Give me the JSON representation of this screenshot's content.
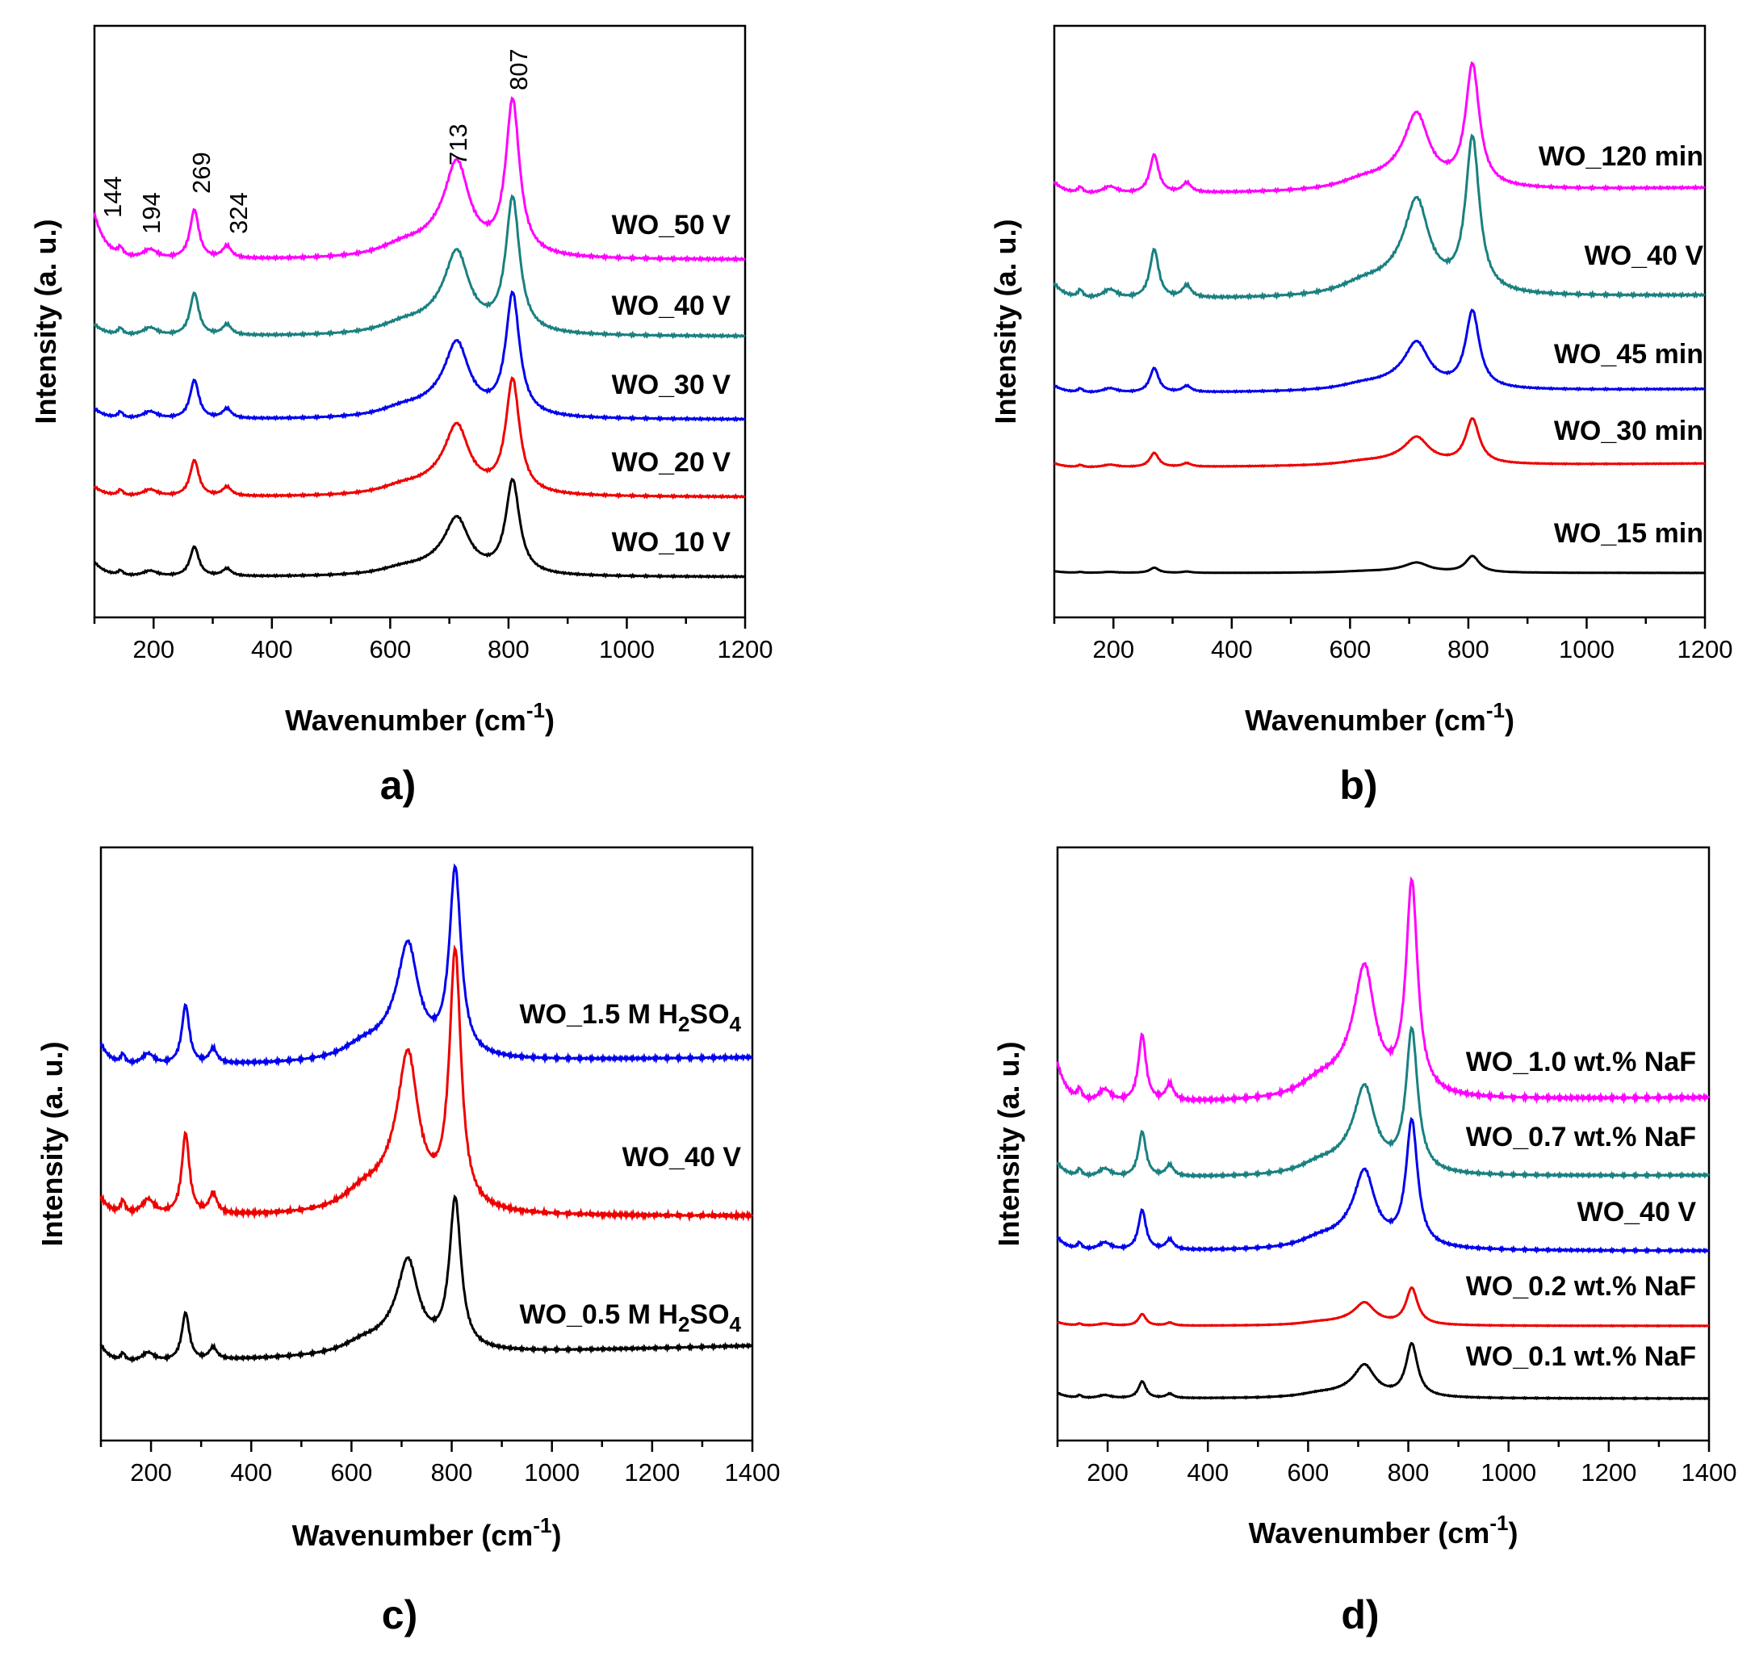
{
  "chart_data": [
    {
      "panel": "a)",
      "type": "line",
      "xlabel": "Wavenumber (cm",
      "xlabel_sup": "-1",
      "xlabel_end": ")",
      "ylabel": "Intensity (a. u.)",
      "xlim": [
        100,
        1200
      ],
      "xticks": [
        200,
        400,
        600,
        800,
        1000,
        1200
      ],
      "peak_labels": [
        "144",
        "194",
        "269",
        "324",
        "713",
        "807"
      ],
      "series": [
        {
          "name": "WO_50 V",
          "color": "#ff00ff",
          "scale": 1.0,
          "baseline": 0.85,
          "end": 0.0
        },
        {
          "name": "WO_40 V",
          "color": "#1a8080",
          "scale": 1.0,
          "baseline": 0.25,
          "end": 0.0
        },
        {
          "name": "WO_30 V",
          "color": "#0000ee",
          "scale": 0.85,
          "baseline": 0.25,
          "end": 0.0
        },
        {
          "name": "WO_20 V",
          "color": "#ee0000",
          "scale": 0.85,
          "baseline": 0.25,
          "end": 0.0
        },
        {
          "name": "WO_10 V",
          "color": "#000000",
          "scale": 0.65,
          "baseline": 0.45,
          "end": 0.0
        }
      ]
    },
    {
      "panel": "b)",
      "type": "line",
      "xlabel": "Wavenumber (cm",
      "xlabel_sup": "-1",
      "xlabel_end": ")",
      "ylabel": "Intensity (a. u.)",
      "xlim": [
        100,
        1200
      ],
      "xticks": [
        200,
        400,
        600,
        800,
        1000,
        1200
      ],
      "series": [
        {
          "name": "WO_120 min",
          "color": "#ff00ff",
          "scale": 0.85,
          "baseline": 0.3,
          "end": 0.06
        },
        {
          "name": "WO_40 V",
          "color": "#1a8080",
          "scale": 1.0,
          "baseline": 0.3,
          "end": 0.03
        },
        {
          "name": "WO_45 min",
          "color": "#0000ee",
          "scale": 0.55,
          "baseline": 0.3,
          "end": 0.06
        },
        {
          "name": "WO_30 min",
          "color": "#ee0000",
          "scale": 0.3,
          "baseline": 0.3,
          "end": 0.1
        },
        {
          "name": "WO_15 min",
          "color": "#000000",
          "scale": 0.1,
          "baseline": 0.3,
          "end": 0.0
        }
      ]
    },
    {
      "panel": "c)",
      "type": "line",
      "xlabel": "Wavenumber (cm",
      "xlabel_sup": "-1",
      "xlabel_end": ")",
      "ylabel": "Intensity (a. u.)",
      "xlim": [
        100,
        1400
      ],
      "xticks": [
        200,
        400,
        600,
        800,
        1000,
        1200,
        1400
      ],
      "series": [
        {
          "name": "WO_1.5 M H",
          "sub1": "2",
          "mid": "SO",
          "sub2": "4",
          "color": "#0000ee",
          "scale": 0.95,
          "baseline": 0.35,
          "end": 0.05
        },
        {
          "name": "WO_40 V",
          "color": "#ee0000",
          "scale": 1.2,
          "baseline": 0.2,
          "end": 0.0
        },
        {
          "name": "WO_0.5 M H",
          "sub1": "2",
          "mid": "SO",
          "sub2": "4",
          "color": "#000000",
          "scale": 0.75,
          "baseline": 0.35,
          "end": 0.12
        }
      ]
    },
    {
      "panel": "d)",
      "type": "line",
      "xlabel": "Wavenumber (cm",
      "xlabel_sup": "-1",
      "xlabel_end": ")",
      "ylabel": "Intensity (a. u.)",
      "xlim": [
        100,
        1400
      ],
      "xticks": [
        200,
        400,
        600,
        800,
        1000,
        1200,
        1400
      ],
      "series": [
        {
          "name": "WO_1.0 wt.% NaF",
          "color": "#ff00ff",
          "scale": 1.1,
          "baseline": 0.55,
          "end": 0.03
        },
        {
          "name": "WO_0.7 wt.% NaF",
          "color": "#1a8080",
          "scale": 0.75,
          "baseline": 0.3,
          "end": 0.02
        },
        {
          "name": "WO_40 V",
          "color": "#0000ee",
          "scale": 0.6,
          "baseline": 0.3,
          "end": 0.0
        },
        {
          "name": "WO_0.2 wt.% NaF",
          "color": "#ee0000",
          "scale": 0.15,
          "baseline": 0.3,
          "end": 0.0
        },
        {
          "name": "WO_0.1 wt.% NaF",
          "color": "#000000",
          "scale": 0.25,
          "baseline": 0.3,
          "end": 0.0
        }
      ]
    }
  ]
}
